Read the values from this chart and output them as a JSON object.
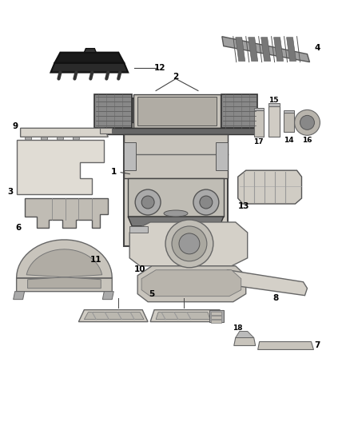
{
  "background_color": "#ffffff",
  "line_color": "#444444",
  "text_color": "#000000",
  "fill_light": "#e8e6e0",
  "fill_mid": "#c8c4bc",
  "fill_dark": "#a8a4a0",
  "fill_black": "#1a1a1a"
}
